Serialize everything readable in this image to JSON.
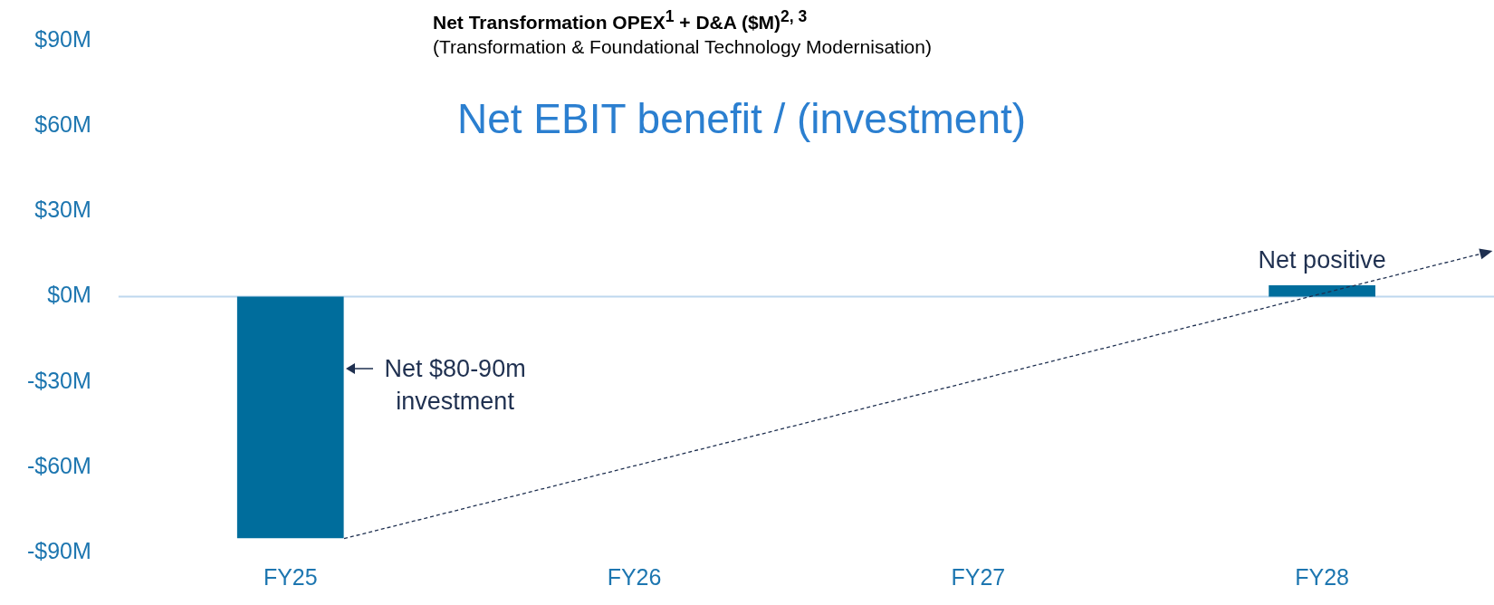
{
  "chart_data": {
    "type": "bar",
    "title": "Net Transformation OPEX$^{1}$ + D&A ($M)$^{2, 3}$",
    "subtitle": "(Transformation & Foundational Technology Modernisation)",
    "categories": [
      "FY25",
      "FY26",
      "FY27",
      "FY28"
    ],
    "values": [
      -85,
      null,
      null,
      4
    ],
    "color": "#006d9c",
    "ylim": [
      -90,
      90
    ],
    "yticks": [
      {
        "value": -90,
        "label": "-$90M"
      },
      {
        "value": -60,
        "label": "-$60M"
      },
      {
        "value": -30,
        "label": "-$30M"
      },
      {
        "value": 0,
        "label": "$0M"
      },
      {
        "value": 30,
        "label": "$30M"
      },
      {
        "value": 60,
        "label": "$60M"
      },
      {
        "value": 90,
        "label": "$90M"
      }
    ],
    "ref_lines": [
      {
        "axis": "y",
        "value": 0,
        "color": "#bdd7ee"
      }
    ],
    "annotations": [
      "Net EBIT benefit / (investment)",
      "Net $80-90m investment",
      "Net positive"
    ],
    "grid": false,
    "legend": false
  }
}
